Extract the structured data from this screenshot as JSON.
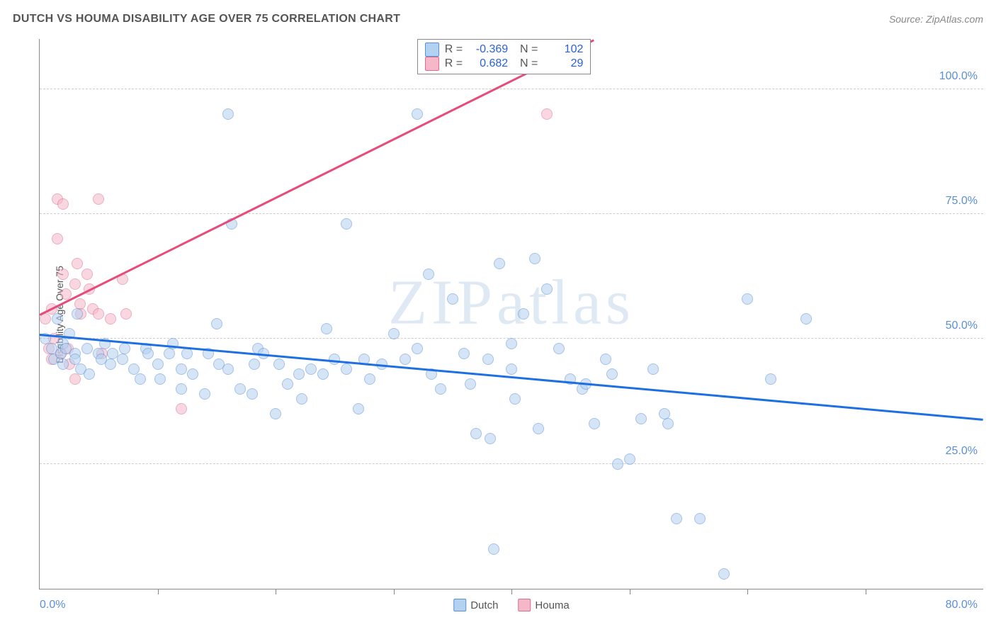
{
  "title": "DUTCH VS HOUMA DISABILITY AGE OVER 75 CORRELATION CHART",
  "source": "Source: ZipAtlas.com",
  "ylabel": "Disability Age Over 75",
  "watermark": "ZIPatlas",
  "chart": {
    "type": "scatter",
    "background_color": "#ffffff",
    "grid_color": "#cccccc",
    "axis_color": "#888888",
    "xlim": [
      0,
      80
    ],
    "ylim": [
      0,
      110
    ],
    "xtick_step": 10,
    "yticks": [
      25,
      50,
      75,
      100
    ],
    "ytick_labels": [
      "25.0%",
      "50.0%",
      "75.0%",
      "100.0%"
    ],
    "xaxis_label_left": "0.0%",
    "xaxis_label_right": "80.0%",
    "marker_radius": 8,
    "marker_stroke_width": 1.5,
    "label_fontsize": 16,
    "label_color": "#5b8fd6"
  },
  "series": {
    "dutch": {
      "label": "Dutch",
      "fill": "#b3d1f0",
      "stroke": "#5b8fd6",
      "fill_opacity": 0.55,
      "trend": {
        "color": "#1e6fe0",
        "x1": 0,
        "y1": 51,
        "x2": 80,
        "y2": 34
      },
      "points": [
        [
          0.5,
          50
        ],
        [
          1,
          48
        ],
        [
          1.2,
          46
        ],
        [
          1.5,
          54
        ],
        [
          1.8,
          47
        ],
        [
          2,
          49
        ],
        [
          2,
          45
        ],
        [
          2.2,
          48
        ],
        [
          2.5,
          51
        ],
        [
          3,
          47
        ],
        [
          3,
          46
        ],
        [
          3.2,
          55
        ],
        [
          3.5,
          44
        ],
        [
          4,
          48
        ],
        [
          4.2,
          43
        ],
        [
          5,
          47
        ],
        [
          5.2,
          46
        ],
        [
          5.5,
          49
        ],
        [
          6,
          45
        ],
        [
          6.2,
          47
        ],
        [
          7,
          46
        ],
        [
          7.2,
          48
        ],
        [
          8,
          44
        ],
        [
          8.5,
          42
        ],
        [
          9,
          48
        ],
        [
          9.2,
          47
        ],
        [
          10,
          45
        ],
        [
          10.2,
          42
        ],
        [
          11,
          47
        ],
        [
          11.3,
          49
        ],
        [
          12,
          44
        ],
        [
          12,
          40
        ],
        [
          12.5,
          47
        ],
        [
          13,
          43
        ],
        [
          14,
          39
        ],
        [
          14.3,
          47
        ],
        [
          15,
          53
        ],
        [
          15.2,
          45
        ],
        [
          16,
          44
        ],
        [
          16.3,
          73
        ],
        [
          17,
          40
        ],
        [
          18,
          39
        ],
        [
          18.2,
          45
        ],
        [
          18.5,
          48
        ],
        [
          19,
          47
        ],
        [
          20,
          35
        ],
        [
          20.3,
          45
        ],
        [
          21,
          41
        ],
        [
          22,
          43
        ],
        [
          22.2,
          38
        ],
        [
          23,
          44
        ],
        [
          24,
          43
        ],
        [
          24.3,
          52
        ],
        [
          25,
          46
        ],
        [
          26,
          44
        ],
        [
          26,
          73
        ],
        [
          27,
          36
        ],
        [
          27.5,
          46
        ],
        [
          28,
          42
        ],
        [
          29,
          45
        ],
        [
          30,
          51
        ],
        [
          31,
          46
        ],
        [
          32,
          48
        ],
        [
          33,
          63
        ],
        [
          33.2,
          43
        ],
        [
          34,
          40
        ],
        [
          35,
          58
        ],
        [
          36,
          47
        ],
        [
          36.5,
          41
        ],
        [
          37,
          31
        ],
        [
          38,
          46
        ],
        [
          38.2,
          30
        ],
        [
          38.5,
          8
        ],
        [
          39,
          65
        ],
        [
          40,
          49
        ],
        [
          40,
          44
        ],
        [
          40.3,
          38
        ],
        [
          41,
          55
        ],
        [
          42,
          66
        ],
        [
          42.3,
          32
        ],
        [
          43,
          60
        ],
        [
          44,
          48
        ],
        [
          45,
          42
        ],
        [
          46,
          40
        ],
        [
          46.3,
          41
        ],
        [
          47,
          33
        ],
        [
          48,
          46
        ],
        [
          48.5,
          43
        ],
        [
          49,
          25
        ],
        [
          50,
          26
        ],
        [
          51,
          34
        ],
        [
          52,
          44
        ],
        [
          53,
          35
        ],
        [
          53.3,
          33
        ],
        [
          54,
          14
        ],
        [
          56,
          14
        ],
        [
          58,
          3
        ],
        [
          60,
          58
        ],
        [
          62,
          42
        ],
        [
          65,
          54
        ],
        [
          16,
          95
        ],
        [
          32,
          95
        ]
      ]
    },
    "houma": {
      "label": "Houma",
      "fill": "#f5b8c9",
      "stroke": "#e06b8f",
      "fill_opacity": 0.55,
      "trend": {
        "color": "#e84b7a",
        "x1": 0,
        "y1": 55,
        "x2": 47,
        "y2": 110
      },
      "points": [
        [
          0.5,
          54
        ],
        [
          0.8,
          48
        ],
        [
          1,
          46
        ],
        [
          1,
          56
        ],
        [
          1.2,
          50
        ],
        [
          1.5,
          78
        ],
        [
          1.5,
          70
        ],
        [
          1.8,
          47
        ],
        [
          2,
          63
        ],
        [
          2,
          77
        ],
        [
          2.2,
          59
        ],
        [
          2.4,
          48
        ],
        [
          2.5,
          45
        ],
        [
          3,
          61
        ],
        [
          3.2,
          65
        ],
        [
          3.4,
          57
        ],
        [
          3.5,
          55
        ],
        [
          4,
          63
        ],
        [
          4.2,
          60
        ],
        [
          4.5,
          56
        ],
        [
          5,
          78
        ],
        [
          5,
          55
        ],
        [
          5.3,
          47
        ],
        [
          6,
          54
        ],
        [
          7,
          62
        ],
        [
          7.3,
          55
        ],
        [
          12,
          36
        ],
        [
          3,
          42
        ],
        [
          43,
          95
        ]
      ]
    }
  },
  "stats": [
    {
      "series": "dutch",
      "R": "-0.369",
      "N": "102"
    },
    {
      "series": "houma",
      "R": "0.682",
      "N": "29"
    }
  ],
  "legend": [
    {
      "series": "dutch"
    },
    {
      "series": "houma"
    }
  ]
}
